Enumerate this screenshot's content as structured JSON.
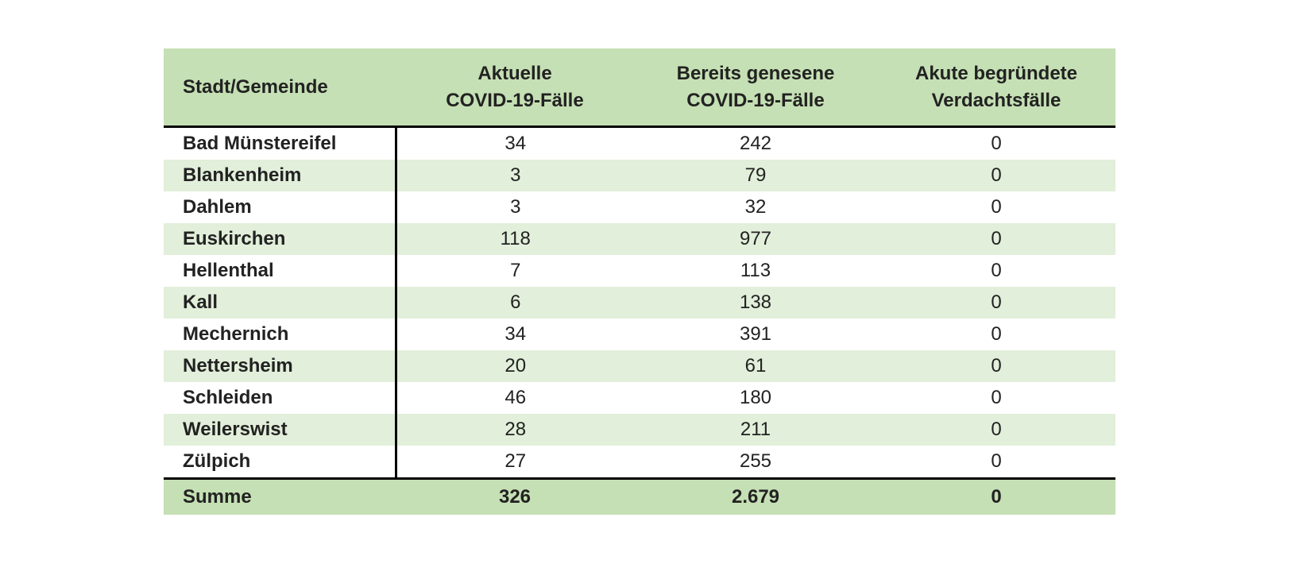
{
  "colors": {
    "header_bg": "#c5e0b4",
    "row_alt_bg": "#e2efda",
    "row_bg": "#ffffff",
    "footer_bg": "#c5e0b4",
    "rule": "#000000"
  },
  "table": {
    "headers": [
      [
        "Stadt/Gemeinde"
      ],
      [
        "Aktuelle",
        "COVID-19-Fälle"
      ],
      [
        "Bereits genesene",
        "COVID-19-Fälle"
      ],
      [
        "Akute begründete",
        "Verdachtsfälle"
      ]
    ],
    "rows": [
      [
        "Bad Münstereifel",
        "34",
        "242",
        "0"
      ],
      [
        "Blankenheim",
        "3",
        "79",
        "0"
      ],
      [
        "Dahlem",
        "3",
        "32",
        "0"
      ],
      [
        "Euskirchen",
        "118",
        "977",
        "0"
      ],
      [
        "Hellenthal",
        "7",
        "113",
        "0"
      ],
      [
        "Kall",
        "6",
        "138",
        "0"
      ],
      [
        "Mechernich",
        "34",
        "391",
        "0"
      ],
      [
        "Nettersheim",
        "20",
        "61",
        "0"
      ],
      [
        "Schleiden",
        "46",
        "180",
        "0"
      ],
      [
        "Weilerswist",
        "28",
        "211",
        "0"
      ],
      [
        "Zülpich",
        "27",
        "255",
        "0"
      ]
    ],
    "footer": [
      "Summe",
      "326",
      "2.679",
      "0"
    ]
  }
}
